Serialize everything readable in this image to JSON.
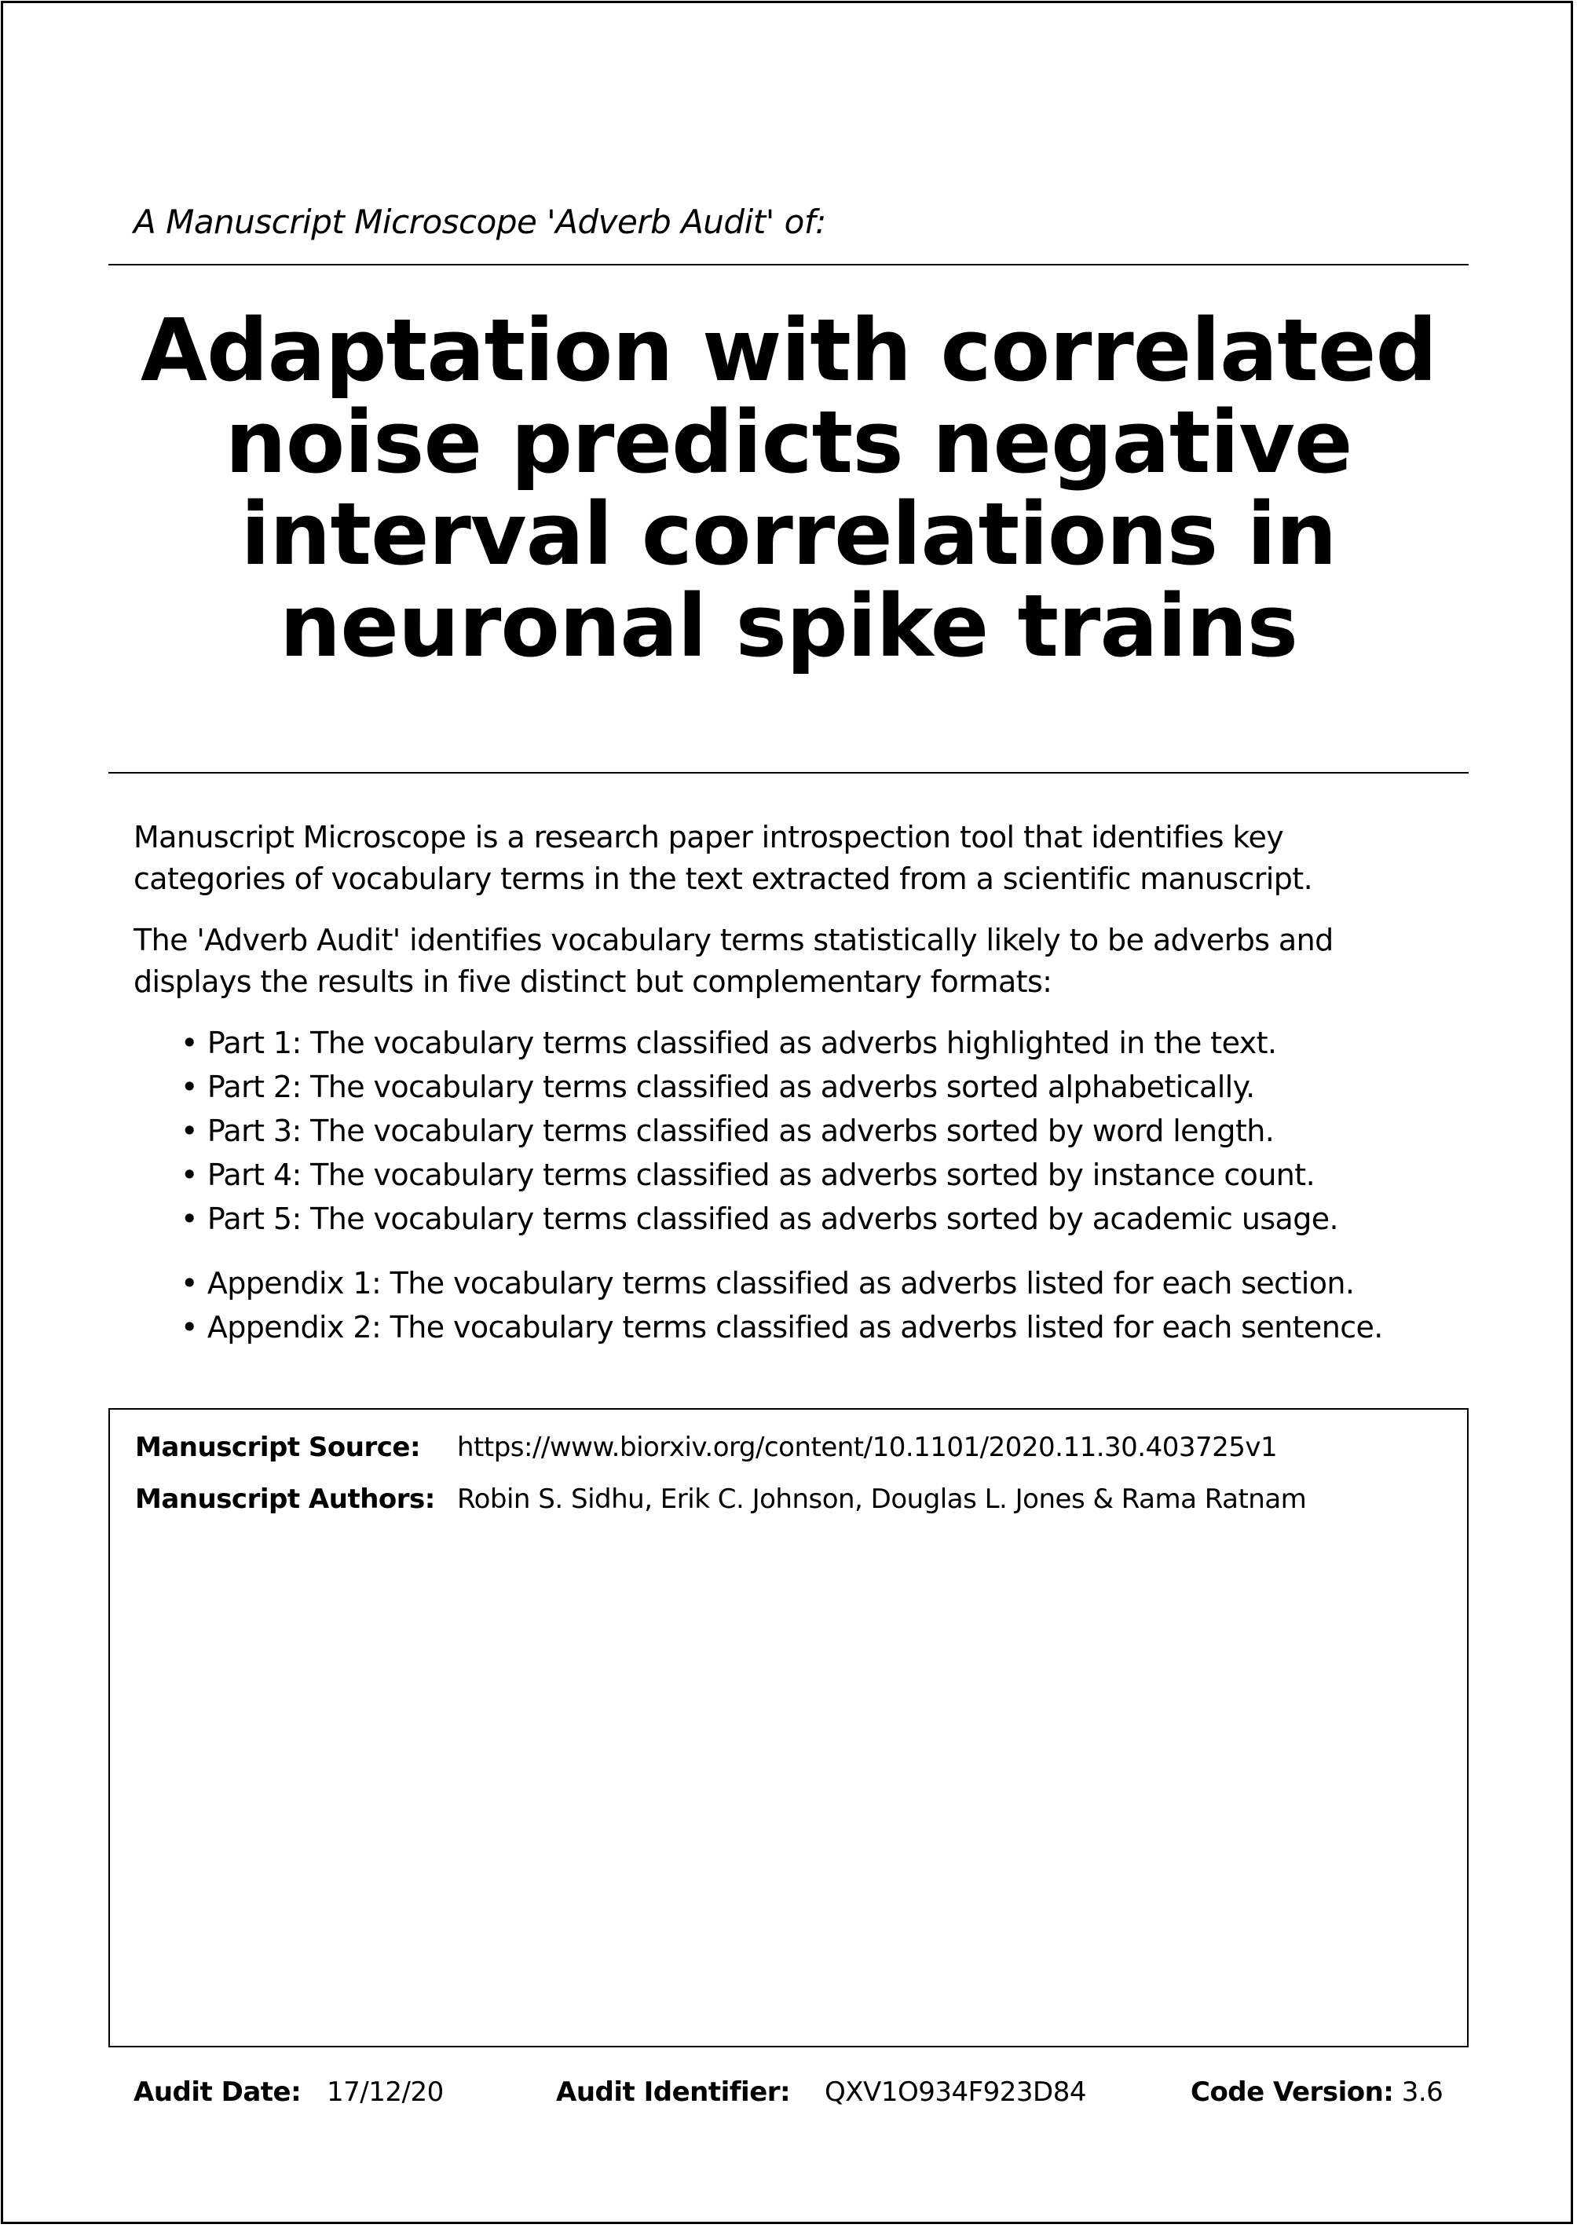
{
  "header": {
    "subtitle": "A Manuscript Microscope 'Adverb Audit' of:",
    "title": "Adaptation with correlated noise predicts negative interval correlations in neuronal spike trains"
  },
  "intro": {
    "paragraph_1": "Manuscript Microscope is a research paper introspection tool that identifies key categories of vocabulary terms in the text extracted from a scientific manuscript.",
    "paragraph_2": "The 'Adverb Audit' identifies vocabulary terms statistically likely to be adverbs and displays the results in five distinct but complementary formats:",
    "parts": [
      "Part 1: The vocabulary terms classified as adverbs highlighted in the text.",
      "Part 2: The vocabulary terms classified as adverbs sorted alphabetically.",
      "Part 3: The vocabulary terms classified as adverbs sorted by word length.",
      "Part 4: The vocabulary terms classified as adverbs sorted by instance count.",
      "Part 5: The vocabulary terms classified as adverbs sorted by academic usage."
    ],
    "appendices": [
      "Appendix 1: The vocabulary terms classified as adverbs listed for each section.",
      "Appendix 2: The vocabulary terms classified as adverbs listed for each sentence."
    ]
  },
  "info": {
    "source_label": "Manuscript Source:",
    "source_value": "https://www.biorxiv.org/content/10.1101/2020.11.30.403725v1",
    "authors_label": "Manuscript Authors:",
    "authors_value": "Robin S. Sidhu, Erik C. Johnson, Douglas L. Jones & Rama Ratnam"
  },
  "footer": {
    "date_label": "Audit Date:",
    "date_value": "17/12/20",
    "identifier_label": "Audit Identifier:",
    "identifier_value": "QXV1O934F923D84",
    "code_label": "Code Version:",
    "code_value": "3.6"
  }
}
